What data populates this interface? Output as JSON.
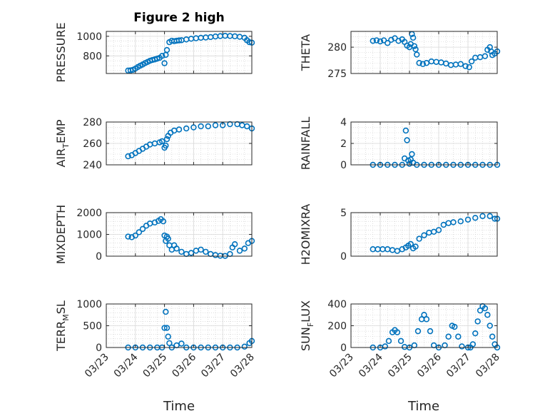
{
  "figure": {
    "title": "Figure 2 high",
    "xlabel": "Time",
    "date_ticks": [
      "03/23",
      "03/24",
      "03/25",
      "03/26",
      "03/27",
      "03/28"
    ],
    "marker_color": "#0072BD",
    "axis_color": "#262626",
    "grid_color": "#c8c8c8"
  },
  "chart_data": [
    {
      "type": "scatter",
      "id": "pressure",
      "ylabel": "PRESSURE",
      "ylim": [
        620,
        1050
      ],
      "yticks": [
        800,
        1000
      ],
      "grid": true,
      "points": [
        [
          "03/23 18:00",
          650
        ],
        [
          "03/23 20:00",
          652
        ],
        [
          "03/23 22:00",
          658
        ],
        [
          "03/24 00:00",
          670
        ],
        [
          "03/24 02:00",
          686
        ],
        [
          "03/24 04:00",
          700
        ],
        [
          "03/24 06:00",
          712
        ],
        [
          "03/24 08:00",
          726
        ],
        [
          "03/24 10:00",
          738
        ],
        [
          "03/24 12:00",
          750
        ],
        [
          "03/24 14:00",
          758
        ],
        [
          "03/24 16:00",
          764
        ],
        [
          "03/24 18:00",
          772
        ],
        [
          "03/24 20:00",
          780
        ],
        [
          "03/24 22:00",
          800
        ],
        [
          "03/25 00:00",
          725
        ],
        [
          "03/25 01:00",
          810
        ],
        [
          "03/25 02:00",
          860
        ],
        [
          "03/25 04:00",
          940
        ],
        [
          "03/25 06:00",
          955
        ],
        [
          "03/25 08:00",
          950
        ],
        [
          "03/25 10:00",
          955
        ],
        [
          "03/25 12:00",
          958
        ],
        [
          "03/25 14:00",
          960
        ],
        [
          "03/25 18:00",
          968
        ],
        [
          "03/25 22:00",
          975
        ],
        [
          "03/26 02:00",
          980
        ],
        [
          "03/26 06:00",
          985
        ],
        [
          "03/26 10:00",
          988
        ],
        [
          "03/26 14:00",
          992
        ],
        [
          "03/26 18:00",
          998
        ],
        [
          "03/26 22:00",
          1002
        ],
        [
          "03/27 02:00",
          1005
        ],
        [
          "03/27 06:00",
          1003
        ],
        [
          "03/27 10:00",
          1000
        ],
        [
          "03/27 14:00",
          995
        ],
        [
          "03/27 18:00",
          985
        ],
        [
          "03/27 20:00",
          960
        ],
        [
          "03/27 22:00",
          940
        ],
        [
          "03/28 00:00",
          935
        ]
      ]
    },
    {
      "type": "scatter",
      "id": "theta",
      "ylabel": "THETA",
      "ylim": [
        275,
        283
      ],
      "yticks": [
        275,
        280
      ],
      "grid": true,
      "points": [
        [
          "03/23 18:00",
          281.2
        ],
        [
          "03/23 21:00",
          281.3
        ],
        [
          "03/24 00:00",
          281.1
        ],
        [
          "03/24 03:00",
          281.3
        ],
        [
          "03/24 06:00",
          280.8
        ],
        [
          "03/24 09:00",
          281.4
        ],
        [
          "03/24 12:00",
          281.7
        ],
        [
          "03/24 15:00",
          281.2
        ],
        [
          "03/24 18:00",
          281.5
        ],
        [
          "03/24 20:00",
          281.0
        ],
        [
          "03/24 22:00",
          280.3
        ],
        [
          "03/25 00:00",
          280.0
        ],
        [
          "03/25 01:00",
          280.6
        ],
        [
          "03/25 02:00",
          282.5
        ],
        [
          "03/25 03:00",
          281.8
        ],
        [
          "03/25 04:00",
          280.2
        ],
        [
          "03/25 05:00",
          279.6
        ],
        [
          "03/25 06:00",
          278.6
        ],
        [
          "03/25 08:00",
          277.0
        ],
        [
          "03/25 11:00",
          276.8
        ],
        [
          "03/25 14:00",
          277.0
        ],
        [
          "03/25 18:00",
          277.3
        ],
        [
          "03/25 22:00",
          277.2
        ],
        [
          "03/26 02:00",
          277.1
        ],
        [
          "03/26 06:00",
          276.9
        ],
        [
          "03/26 10:00",
          276.6
        ],
        [
          "03/26 14:00",
          276.7
        ],
        [
          "03/26 18:00",
          276.8
        ],
        [
          "03/26 22:00",
          276.4
        ],
        [
          "03/27 01:00",
          276.2
        ],
        [
          "03/27 03:00",
          277.3
        ],
        [
          "03/27 06:00",
          278.0
        ],
        [
          "03/27 10:00",
          278.1
        ],
        [
          "03/27 14:00",
          278.3
        ],
        [
          "03/27 16:00",
          279.5
        ],
        [
          "03/27 18:00",
          280.0
        ],
        [
          "03/27 19:00",
          279.2
        ],
        [
          "03/27 20:00",
          278.5
        ],
        [
          "03/27 22:00",
          278.8
        ],
        [
          "03/28 00:00",
          279.2
        ]
      ]
    },
    {
      "type": "scatter",
      "id": "air_temp",
      "ylabel": "AIR_TEMP",
      "ylim": [
        240,
        280
      ],
      "yticks": [
        240,
        260,
        280
      ],
      "grid": true,
      "points": [
        [
          "03/23 18:00",
          248
        ],
        [
          "03/23 21:00",
          249
        ],
        [
          "03/24 00:00",
          251
        ],
        [
          "03/24 03:00",
          253
        ],
        [
          "03/24 06:00",
          255
        ],
        [
          "03/24 09:00",
          257
        ],
        [
          "03/24 12:00",
          259
        ],
        [
          "03/24 16:00",
          260
        ],
        [
          "03/24 20:00",
          261
        ],
        [
          "03/24 22:00",
          262
        ],
        [
          "03/25 00:00",
          256
        ],
        [
          "03/25 01:00",
          258
        ],
        [
          "03/25 02:00",
          264
        ],
        [
          "03/25 03:00",
          267
        ],
        [
          "03/25 05:00",
          270
        ],
        [
          "03/25 08:00",
          272
        ],
        [
          "03/25 12:00",
          273
        ],
        [
          "03/25 18:00",
          274
        ],
        [
          "03/26 00:00",
          275
        ],
        [
          "03/26 06:00",
          276
        ],
        [
          "03/26 12:00",
          276
        ],
        [
          "03/26 18:00",
          277
        ],
        [
          "03/27 00:00",
          277
        ],
        [
          "03/27 06:00",
          278
        ],
        [
          "03/27 12:00",
          278
        ],
        [
          "03/27 16:00",
          277
        ],
        [
          "03/27 20:00",
          276
        ],
        [
          "03/28 00:00",
          274
        ]
      ]
    },
    {
      "type": "scatter",
      "id": "rainfall",
      "ylabel": "RAINFALL",
      "ylim": [
        0,
        4
      ],
      "yticks": [
        0,
        2,
        4
      ],
      "grid": true,
      "points": [
        [
          "03/23 18:00",
          0
        ],
        [
          "03/24 00:00",
          0
        ],
        [
          "03/24 06:00",
          0
        ],
        [
          "03/24 12:00",
          0
        ],
        [
          "03/24 18:00",
          0
        ],
        [
          "03/24 20:00",
          0.6
        ],
        [
          "03/24 21:00",
          3.2
        ],
        [
          "03/24 22:00",
          2.3
        ],
        [
          "03/24 23:00",
          0.4
        ],
        [
          "03/25 00:00",
          0.1
        ],
        [
          "03/25 01:00",
          0.5
        ],
        [
          "03/25 02:00",
          1.0
        ],
        [
          "03/25 03:00",
          0.2
        ],
        [
          "03/25 06:00",
          0
        ],
        [
          "03/25 12:00",
          0
        ],
        [
          "03/25 18:00",
          0
        ],
        [
          "03/26 00:00",
          0
        ],
        [
          "03/26 06:00",
          0
        ],
        [
          "03/26 12:00",
          0
        ],
        [
          "03/26 18:00",
          0
        ],
        [
          "03/27 00:00",
          0
        ],
        [
          "03/27 06:00",
          0
        ],
        [
          "03/27 12:00",
          0
        ],
        [
          "03/27 18:00",
          0
        ],
        [
          "03/28 00:00",
          0
        ]
      ]
    },
    {
      "type": "scatter",
      "id": "mixdepth",
      "ylabel": "MIXDEPTH",
      "ylim": [
        0,
        2000
      ],
      "yticks": [
        0,
        1000,
        2000
      ],
      "grid": true,
      "points": [
        [
          "03/23 18:00",
          900
        ],
        [
          "03/23 21:00",
          870
        ],
        [
          "03/24 00:00",
          950
        ],
        [
          "03/24 03:00",
          1100
        ],
        [
          "03/24 06:00",
          1250
        ],
        [
          "03/24 09:00",
          1400
        ],
        [
          "03/24 12:00",
          1500
        ],
        [
          "03/24 16:00",
          1550
        ],
        [
          "03/24 19:00",
          1620
        ],
        [
          "03/24 21:00",
          1700
        ],
        [
          "03/24 23:00",
          1600
        ],
        [
          "03/25 00:00",
          950
        ],
        [
          "03/25 01:00",
          700
        ],
        [
          "03/25 02:00",
          900
        ],
        [
          "03/25 03:00",
          800
        ],
        [
          "03/25 04:00",
          500
        ],
        [
          "03/25 06:00",
          300
        ],
        [
          "03/25 08:00",
          500
        ],
        [
          "03/25 10:00",
          350
        ],
        [
          "03/25 14:00",
          200
        ],
        [
          "03/25 18:00",
          100
        ],
        [
          "03/25 22:00",
          150
        ],
        [
          "03/26 02:00",
          250
        ],
        [
          "03/26 06:00",
          300
        ],
        [
          "03/26 10:00",
          200
        ],
        [
          "03/26 14:00",
          100
        ],
        [
          "03/26 18:00",
          50
        ],
        [
          "03/26 22:00",
          20
        ],
        [
          "03/27 02:00",
          10
        ],
        [
          "03/27 06:00",
          100
        ],
        [
          "03/27 08:00",
          400
        ],
        [
          "03/27 10:00",
          550
        ],
        [
          "03/27 14:00",
          250
        ],
        [
          "03/27 18:00",
          350
        ],
        [
          "03/27 21:00",
          600
        ],
        [
          "03/28 00:00",
          700
        ]
      ]
    },
    {
      "type": "scatter",
      "id": "h2omixra",
      "ylabel": "H2OMIXRA",
      "ylim": [
        0,
        5
      ],
      "yticks": [
        0,
        5
      ],
      "grid": true,
      "points": [
        [
          "03/23 18:00",
          0.8
        ],
        [
          "03/23 22:00",
          0.8
        ],
        [
          "03/24 02:00",
          0.8
        ],
        [
          "03/24 06:00",
          0.8
        ],
        [
          "03/24 10:00",
          0.7
        ],
        [
          "03/24 14:00",
          0.6
        ],
        [
          "03/24 18:00",
          0.8
        ],
        [
          "03/24 21:00",
          1.0
        ],
        [
          "03/24 23:00",
          1.2
        ],
        [
          "03/25 01:00",
          1.4
        ],
        [
          "03/25 03:00",
          0.9
        ],
        [
          "03/25 05:00",
          1.1
        ],
        [
          "03/25 08:00",
          2.0
        ],
        [
          "03/25 12:00",
          2.4
        ],
        [
          "03/25 16:00",
          2.7
        ],
        [
          "03/25 20:00",
          2.8
        ],
        [
          "03/26 00:00",
          3.0
        ],
        [
          "03/26 04:00",
          3.6
        ],
        [
          "03/26 08:00",
          3.8
        ],
        [
          "03/26 12:00",
          3.9
        ],
        [
          "03/26 18:00",
          4.0
        ],
        [
          "03/27 00:00",
          4.2
        ],
        [
          "03/27 06:00",
          4.4
        ],
        [
          "03/27 12:00",
          4.6
        ],
        [
          "03/27 18:00",
          4.6
        ],
        [
          "03/27 22:00",
          4.3
        ],
        [
          "03/28 00:00",
          4.3
        ]
      ]
    },
    {
      "type": "scatter",
      "id": "terr_msl",
      "ylabel": "TERR_MSL",
      "ylim": [
        0,
        1000
      ],
      "yticks": [
        0,
        500,
        1000
      ],
      "grid": true,
      "points": [
        [
          "03/23 18:00",
          0
        ],
        [
          "03/24 00:00",
          0
        ],
        [
          "03/24 06:00",
          0
        ],
        [
          "03/24 12:00",
          0
        ],
        [
          "03/24 18:00",
          0
        ],
        [
          "03/24 22:00",
          0
        ],
        [
          "03/25 00:00",
          450
        ],
        [
          "03/25 01:00",
          820
        ],
        [
          "03/25 02:00",
          450
        ],
        [
          "03/25 03:00",
          250
        ],
        [
          "03/25 04:00",
          100
        ],
        [
          "03/25 06:00",
          0
        ],
        [
          "03/25 10:00",
          50
        ],
        [
          "03/25 14:00",
          90
        ],
        [
          "03/25 18:00",
          0
        ],
        [
          "03/26 00:00",
          0
        ],
        [
          "03/26 06:00",
          0
        ],
        [
          "03/26 12:00",
          0
        ],
        [
          "03/26 18:00",
          0
        ],
        [
          "03/27 00:00",
          0
        ],
        [
          "03/27 06:00",
          0
        ],
        [
          "03/27 12:00",
          0
        ],
        [
          "03/27 18:00",
          20
        ],
        [
          "03/27 22:00",
          100
        ],
        [
          "03/28 00:00",
          150
        ]
      ]
    },
    {
      "type": "scatter",
      "id": "sun_flux",
      "ylabel": "SUN_FLUX",
      "ylim": [
        0,
        400
      ],
      "yticks": [
        0,
        200,
        400
      ],
      "grid": true,
      "points": [
        [
          "03/23 18:00",
          0
        ],
        [
          "03/24 00:00",
          0
        ],
        [
          "03/24 04:00",
          10
        ],
        [
          "03/24 07:00",
          60
        ],
        [
          "03/24 10:00",
          140
        ],
        [
          "03/24 12:00",
          160
        ],
        [
          "03/24 14:00",
          140
        ],
        [
          "03/24 17:00",
          60
        ],
        [
          "03/24 20:00",
          5
        ],
        [
          "03/25 00:00",
          0
        ],
        [
          "03/25 04:00",
          20
        ],
        [
          "03/25 07:00",
          150
        ],
        [
          "03/25 10:00",
          260
        ],
        [
          "03/25 12:00",
          300
        ],
        [
          "03/25 14:00",
          260
        ],
        [
          "03/25 17:00",
          150
        ],
        [
          "03/25 20:00",
          20
        ],
        [
          "03/26 00:00",
          0
        ],
        [
          "03/26 05:00",
          20
        ],
        [
          "03/26 08:00",
          100
        ],
        [
          "03/26 11:00",
          200
        ],
        [
          "03/26 13:00",
          190
        ],
        [
          "03/26 16:00",
          100
        ],
        [
          "03/26 19:00",
          10
        ],
        [
          "03/27 00:00",
          0
        ],
        [
          "03/27 02:00",
          0
        ],
        [
          "03/27 04:00",
          30
        ],
        [
          "03/27 06:00",
          130
        ],
        [
          "03/27 08:00",
          240
        ],
        [
          "03/27 10:00",
          340
        ],
        [
          "03/27 12:00",
          380
        ],
        [
          "03/27 14:00",
          360
        ],
        [
          "03/27 16:00",
          300
        ],
        [
          "03/27 18:00",
          200
        ],
        [
          "03/27 20:00",
          100
        ],
        [
          "03/27 22:00",
          30
        ],
        [
          "03/28 00:00",
          0
        ]
      ]
    }
  ]
}
